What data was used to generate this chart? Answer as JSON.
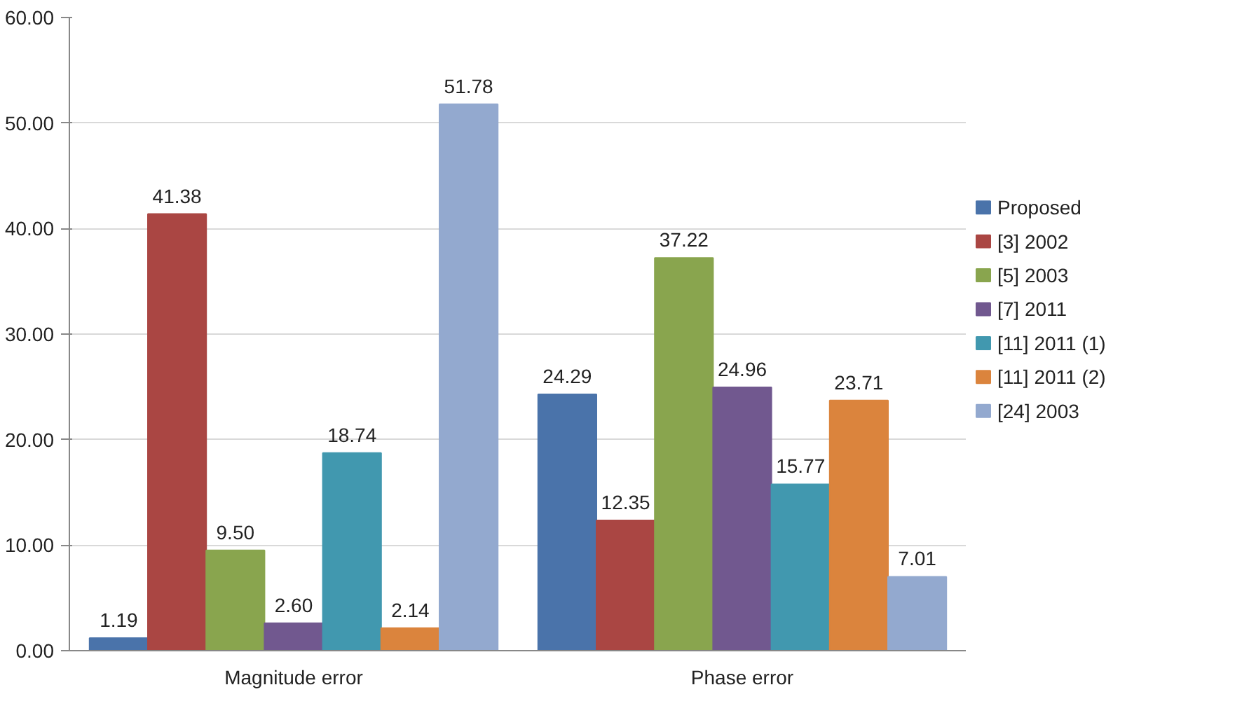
{
  "chart_data": {
    "type": "bar",
    "categories": [
      "Magnitude error",
      "Phase error"
    ],
    "series": [
      {
        "name": "Proposed",
        "color": "#4a73aa",
        "values": [
          1.19,
          24.29
        ],
        "value_labels": [
          "1.19",
          "24.29"
        ]
      },
      {
        "name": "[3] 2002",
        "color": "#aa4643",
        "values": [
          41.38,
          12.35
        ],
        "value_labels": [
          "41.38",
          "12.35"
        ]
      },
      {
        "name": "[5] 2003",
        "color": "#89a54e",
        "values": [
          9.5,
          37.22
        ],
        "value_labels": [
          "9.50",
          "37.22"
        ]
      },
      {
        "name": "[7] 2011",
        "color": "#71588f",
        "values": [
          2.6,
          24.96
        ],
        "value_labels": [
          "2.60",
          "24.96"
        ]
      },
      {
        "name": "[11] 2011 (1)",
        "color": "#4198af",
        "values": [
          18.74,
          15.77
        ],
        "value_labels": [
          "18.74",
          "15.77"
        ]
      },
      {
        "name": "[11] 2011 (2)",
        "color": "#db843d",
        "values": [
          2.14,
          23.71
        ],
        "value_labels": [
          "2.14",
          "23.71"
        ]
      },
      {
        "name": "[24] 2003",
        "color": "#93a9cf",
        "values": [
          51.78,
          7.01
        ],
        "value_labels": [
          "51.78",
          "7.01"
        ]
      }
    ],
    "ylim": [
      0,
      60
    ],
    "yticks": [
      {
        "value": 0,
        "label": "0.00"
      },
      {
        "value": 10,
        "label": "10.00"
      },
      {
        "value": 20,
        "label": "20.00"
      },
      {
        "value": 30,
        "label": "30.00"
      },
      {
        "value": 40,
        "label": "40.00"
      },
      {
        "value": 50,
        "label": "50.00"
      },
      {
        "value": 60,
        "label": "60.00"
      }
    ],
    "grid": "y",
    "legend": "right"
  }
}
